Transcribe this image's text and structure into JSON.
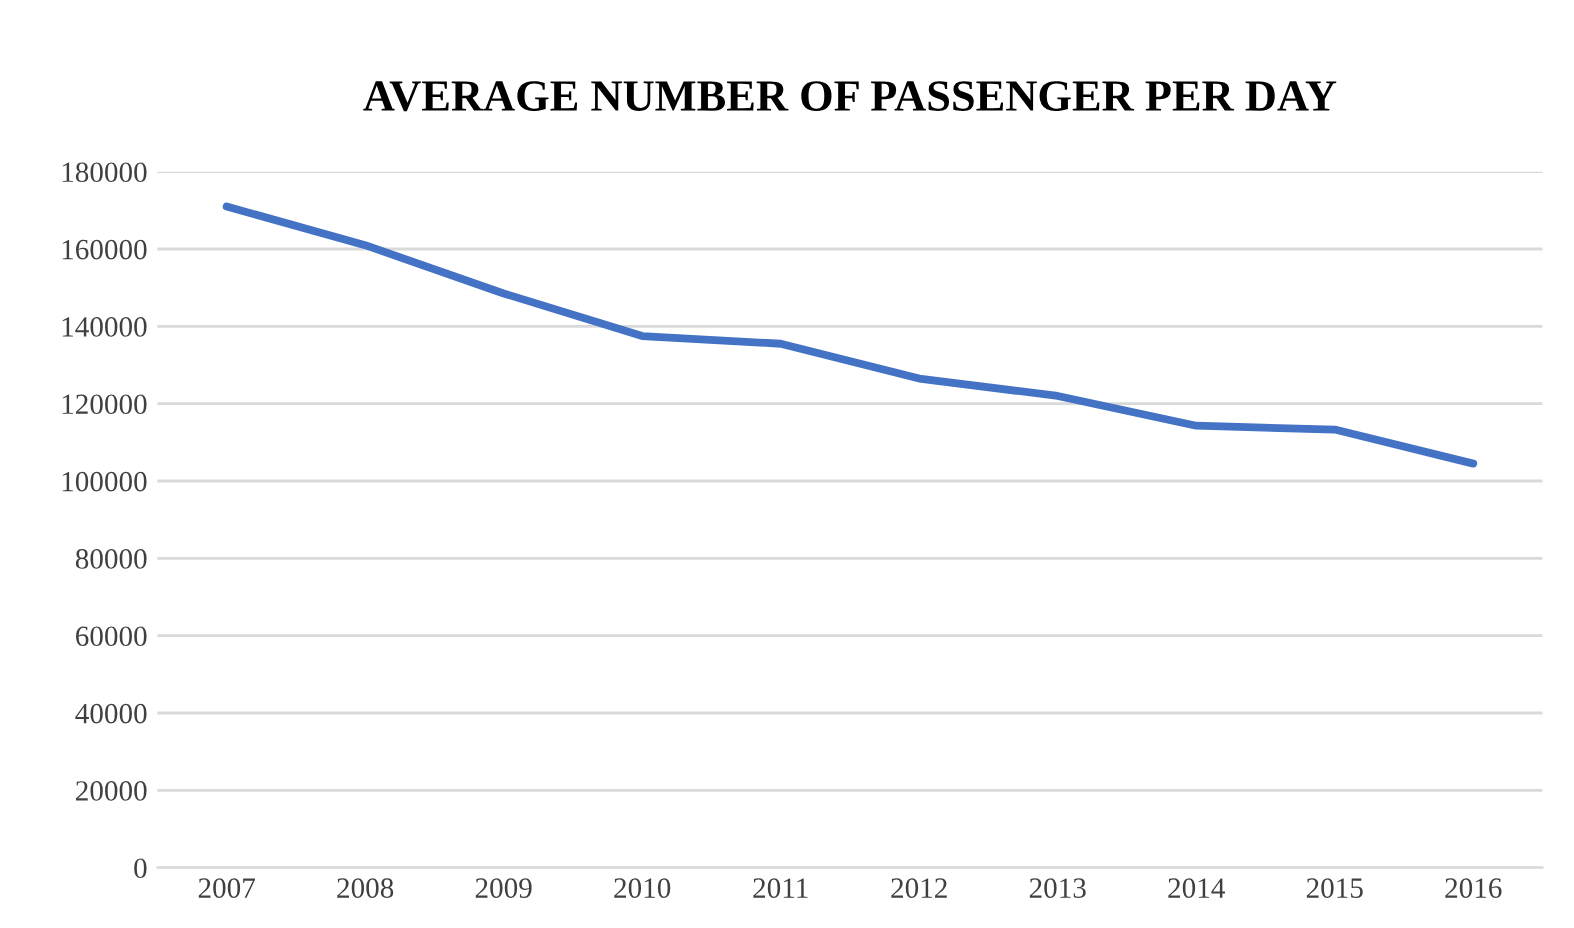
{
  "chart_data": {
    "type": "line",
    "title": "AVERAGE NUMBER OF PASSENGER PER DAY",
    "categories": [
      "2007",
      "2008",
      "2009",
      "2010",
      "2011",
      "2012",
      "2013",
      "2014",
      "2015",
      "2016"
    ],
    "series": [
      {
        "color": "#4472c4",
        "values": [
          171000,
          161000,
          148500,
          137500,
          135500,
          126500,
          122000,
          114300,
          113300,
          104500
        ]
      }
    ],
    "ylim": [
      0,
      180000
    ],
    "yticks": [
      0,
      20000,
      40000,
      60000,
      80000,
      100000,
      120000,
      140000,
      160000,
      180000
    ],
    "grid": "y",
    "marker": "none",
    "line_style": "solid"
  }
}
